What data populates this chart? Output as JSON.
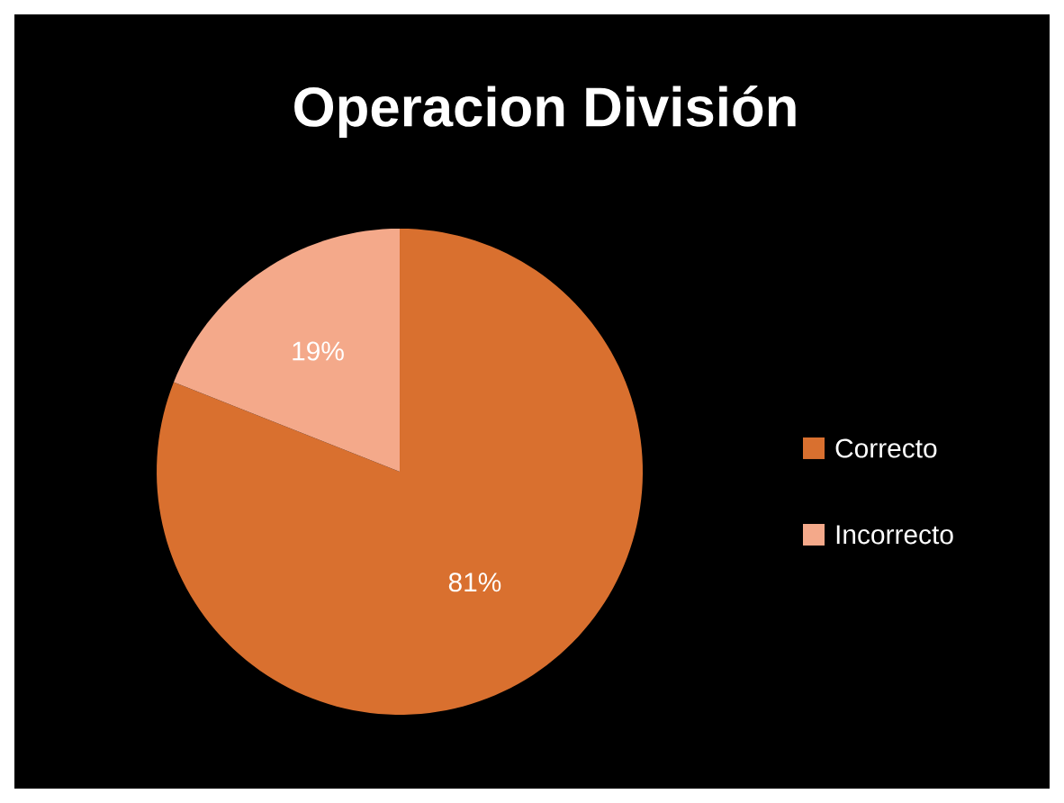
{
  "chart_data": {
    "type": "pie",
    "title": "Operacion División",
    "categories": [
      "Correcto",
      "Incorrecto"
    ],
    "values": [
      81,
      19
    ],
    "value_labels": [
      "81%",
      "19%"
    ],
    "colors": [
      "#d9702f",
      "#f4a98a"
    ],
    "legend": "right"
  }
}
